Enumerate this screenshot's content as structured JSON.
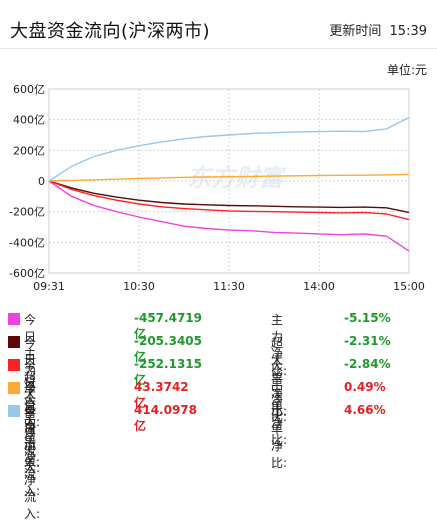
{
  "header": {
    "title": "大盘资金流向(沪深两市)",
    "update_label": "更新时间",
    "update_time": "15:39",
    "unit": "单位:元"
  },
  "watermark": "东方财富",
  "chart_data": {
    "type": "line",
    "title": "大盘资金流向(沪深两市)",
    "xlabel": "",
    "ylabel": "",
    "x_ticks": [
      "09:31",
      "10:30",
      "11:30",
      "14:00",
      "15:00"
    ],
    "y_ticks": [
      "600亿",
      "400亿",
      "200亿",
      "0",
      "-200亿",
      "-400亿",
      "-600亿"
    ],
    "ylim": [
      -600,
      600
    ],
    "grid": true,
    "x": [
      0,
      15,
      30,
      45,
      60,
      75,
      90,
      105,
      120,
      135,
      150,
      165,
      180,
      195,
      210,
      225,
      240
    ],
    "series": [
      {
        "name": "今日主力净流入",
        "color": "#ee44dd",
        "values": [
          0,
          -100,
          -160,
          -200,
          -235,
          -265,
          -295,
          -310,
          -320,
          -325,
          -335,
          -340,
          -345,
          -350,
          -345,
          -360,
          -457
        ]
      },
      {
        "name": "今日超大单净流入",
        "color": "#5a0a0a",
        "values": [
          0,
          -45,
          -80,
          -105,
          -125,
          -140,
          -150,
          -155,
          -160,
          -162,
          -165,
          -168,
          -170,
          -172,
          -170,
          -175,
          -205
        ]
      },
      {
        "name": "今日大单净流入",
        "color": "#ff2222",
        "values": [
          0,
          -55,
          -95,
          -125,
          -150,
          -168,
          -180,
          -188,
          -195,
          -198,
          -200,
          -203,
          -205,
          -208,
          -205,
          -215,
          -252
        ]
      },
      {
        "name": "今日中单净流入",
        "color": "#ffaa33",
        "values": [
          0,
          4,
          8,
          12,
          16,
          20,
          24,
          26,
          28,
          30,
          32,
          34,
          36,
          37,
          38,
          40,
          43
        ]
      },
      {
        "name": "今日小单净流入",
        "color": "#99c7ea",
        "values": [
          0,
          95,
          160,
          200,
          230,
          255,
          275,
          290,
          300,
          310,
          315,
          320,
          322,
          325,
          322,
          340,
          414
        ]
      }
    ]
  },
  "legend_rows": [
    {
      "label": "今日主力净流入:",
      "value": "-457.4719亿",
      "ratio_label": "主力净比:",
      "ratio": "-5.15%",
      "color": "#ee44dd",
      "sign": "neg"
    },
    {
      "label": "今日超大单净流入:",
      "value": "-205.3405亿",
      "ratio_label": "超大单净比:",
      "ratio": "-2.31%",
      "color": "#5a0a0a",
      "sign": "neg"
    },
    {
      "label": "今日大单净流入:",
      "value": "-252.1315亿",
      "ratio_label": "大单净比:",
      "ratio": "-2.84%",
      "color": "#ff2222",
      "sign": "neg"
    },
    {
      "label": "今日中单净流入:",
      "value": "43.3742亿",
      "ratio_label": "中单净比:",
      "ratio": "0.49%",
      "color": "#ffaa33",
      "sign": "pos"
    },
    {
      "label": "今日小单净流入:",
      "value": "414.0978亿",
      "ratio_label": "小单净比:",
      "ratio": "4.66%",
      "color": "#99c7ea",
      "sign": "pos"
    }
  ]
}
